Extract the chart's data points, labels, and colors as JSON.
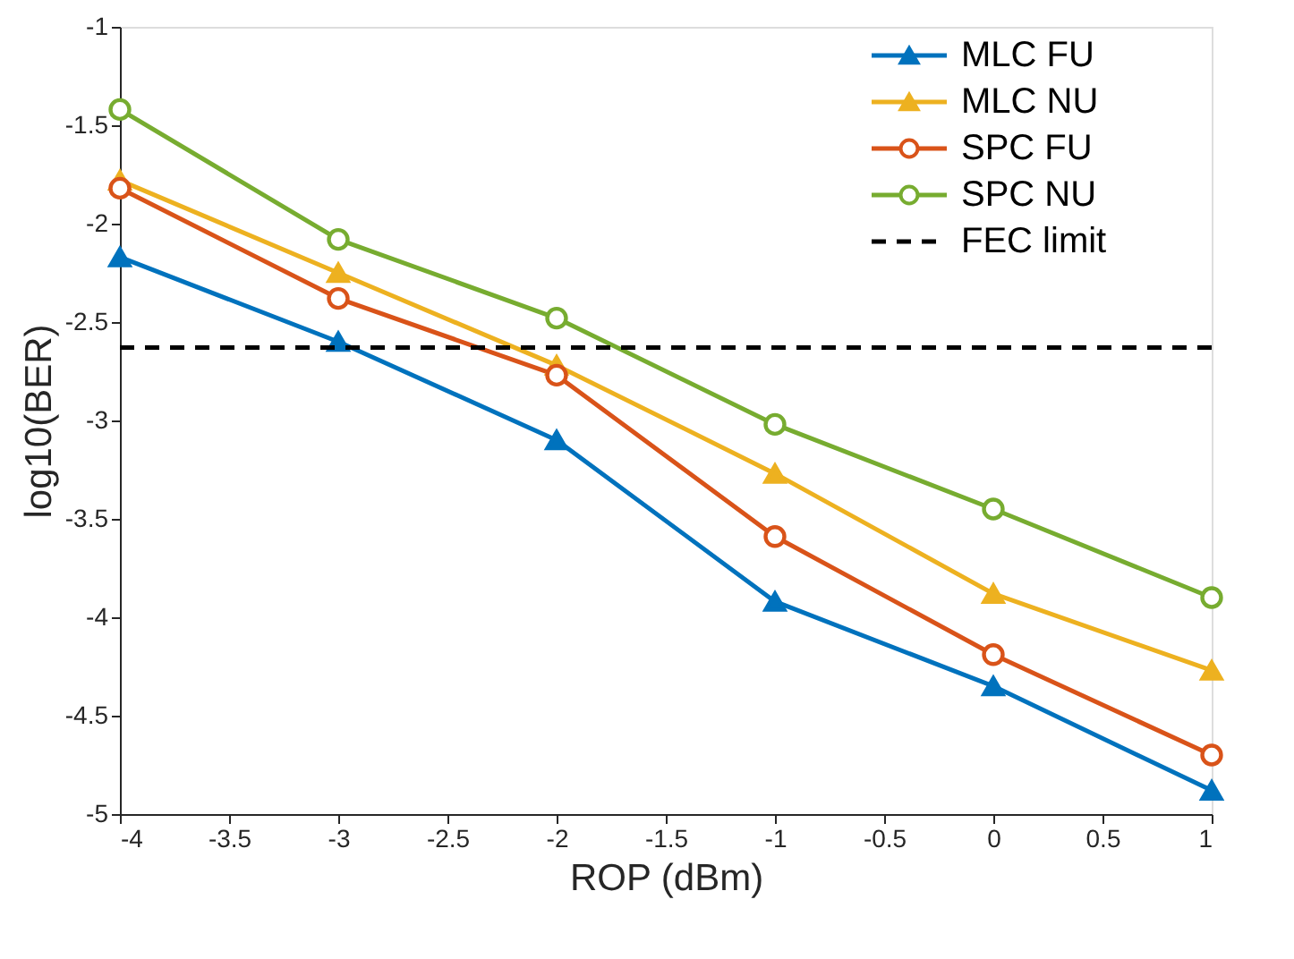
{
  "chart_data": {
    "type": "line",
    "xlabel": "ROP (dBm)",
    "ylabel": "log10(BER)",
    "x": [
      -4,
      -3,
      -2,
      -1,
      0,
      1
    ],
    "series": [
      {
        "name": "MLC FU",
        "color": "#0072bd",
        "marker": "triangle",
        "values": [
          -2.17,
          -2.6,
          -3.1,
          -3.92,
          -4.35,
          -4.88
        ]
      },
      {
        "name": "MLC NU",
        "color": "#edb120",
        "marker": "triangle",
        "values": [
          -1.78,
          -2.25,
          -2.72,
          -3.27,
          -3.88,
          -4.27
        ]
      },
      {
        "name": "SPC FU",
        "color": "#d95319",
        "marker": "circle",
        "values": [
          -1.82,
          -2.38,
          -2.77,
          -3.59,
          -4.19,
          -4.7
        ]
      },
      {
        "name": "SPC NU",
        "color": "#77ac30",
        "marker": "circle",
        "values": [
          -1.42,
          -2.08,
          -2.48,
          -3.02,
          -3.45,
          -3.9
        ]
      }
    ],
    "ref_lines": [
      {
        "axis": "y",
        "value": -2.63,
        "label": "FEC limit",
        "color": "#000000",
        "line_style": "dashed"
      }
    ],
    "xlim": [
      -4,
      1
    ],
    "ylim": [
      -5,
      -1
    ],
    "xticks": [
      -4,
      -3.5,
      -3,
      -2.5,
      -2,
      -1.5,
      -1,
      -0.5,
      0,
      0.5,
      1
    ],
    "yticks": [
      -5,
      -4.5,
      -4,
      -3.5,
      -3,
      -2.5,
      -2,
      -1.5,
      -1
    ],
    "grid": false,
    "legend": "top right",
    "line_style": "solid"
  }
}
